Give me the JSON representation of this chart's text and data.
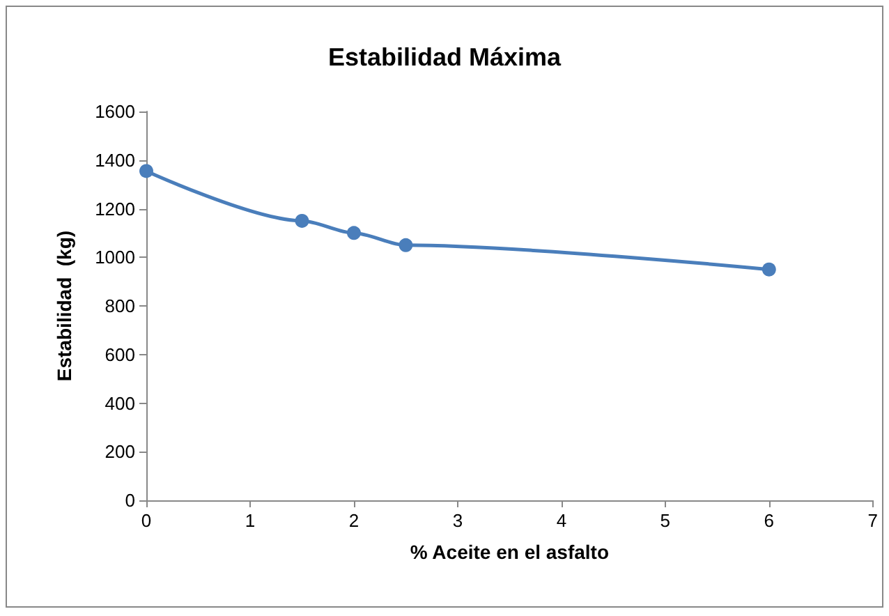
{
  "chart_data": {
    "type": "line",
    "title": "Estabilidad Máxima",
    "xlabel": "% Aceite en el asfalto",
    "ylabel": "Estabilidad  (kg)",
    "x": [
      0,
      1.5,
      2,
      2.5,
      6
    ],
    "series": [
      {
        "color": "#4a7ebb",
        "values": [
          1355,
          1150,
          1100,
          1050,
          950
        ]
      }
    ],
    "xlim": [
      0,
      7
    ],
    "xticks": [
      0,
      1,
      2,
      3,
      4,
      5,
      6,
      7
    ],
    "ylim": [
      0,
      1600
    ],
    "yticks": [
      0,
      200,
      400,
      600,
      800,
      1000,
      1200,
      1400,
      1600
    ],
    "grid": false,
    "marker": "circle",
    "line_style": "solid"
  }
}
